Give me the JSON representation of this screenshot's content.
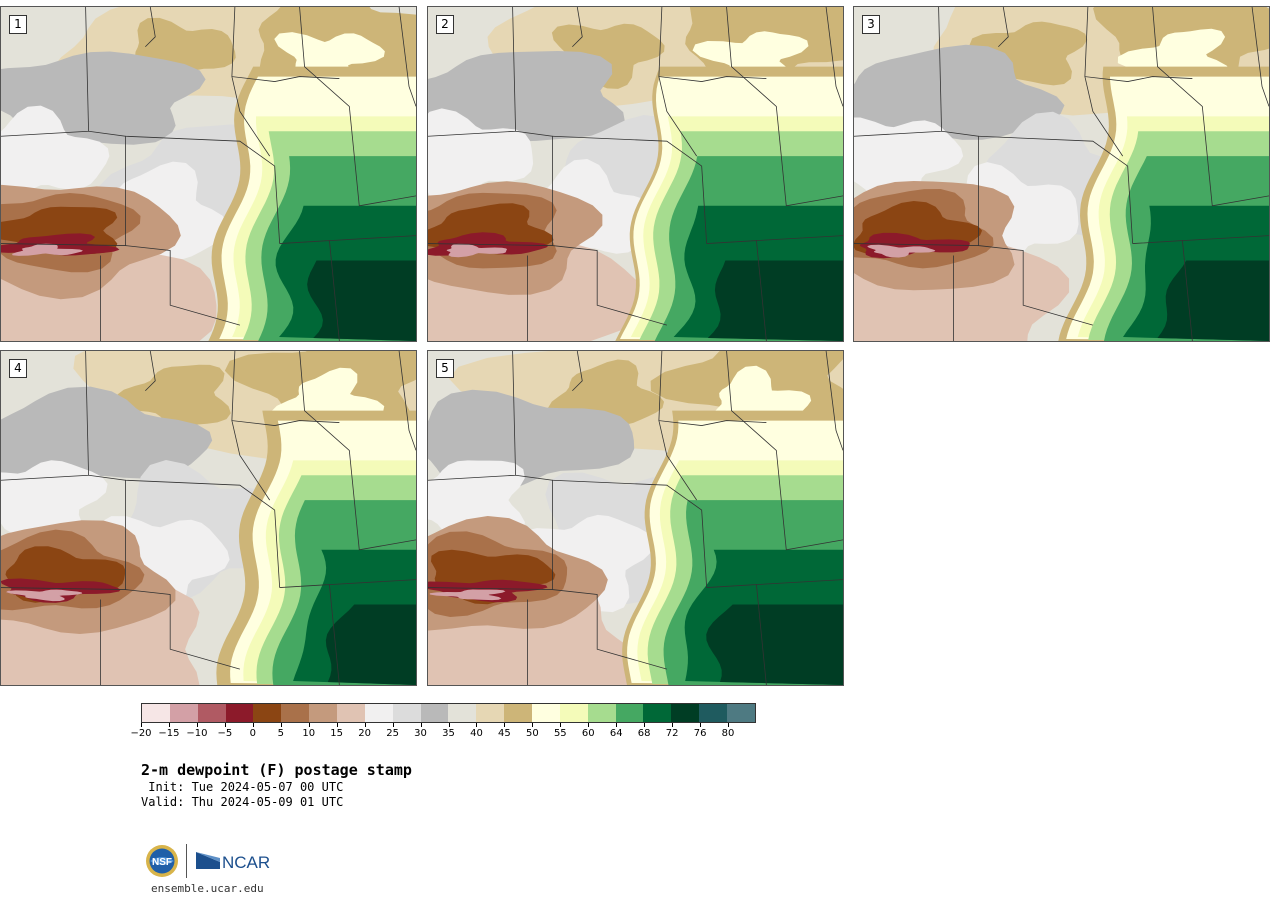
{
  "panels": [
    {
      "label": "1",
      "warm_shift": 0.0,
      "dry_shift": 0.0
    },
    {
      "label": "2",
      "warm_shift": 0.05,
      "dry_shift": -0.03
    },
    {
      "label": "3",
      "warm_shift": 0.02,
      "dry_shift": 0.02
    },
    {
      "label": "4",
      "warm_shift": -0.03,
      "dry_shift": 0.04
    },
    {
      "label": "5",
      "warm_shift": 0.04,
      "dry_shift": -0.02
    }
  ],
  "colorbar": {
    "colors": [
      "#f6e6e6",
      "#d3a0a6",
      "#b05a63",
      "#8c1a2a",
      "#8b4513",
      "#a9714a",
      "#c49a7d",
      "#e0c3b3",
      "#f1f0f0",
      "#dcdcdc",
      "#b9b9b9",
      "#e3e2d9",
      "#e6d7b4",
      "#cdb578",
      "#ffffe0",
      "#f4fbb9",
      "#a6dc8f",
      "#45a862",
      "#006837",
      "#003d24",
      "#1f5b5f",
      "#4e7a82"
    ],
    "tick_labels": [
      "−20",
      "−15",
      "−10",
      "−5",
      "0",
      "5",
      "10",
      "15",
      "20",
      "25",
      "30",
      "35",
      "40",
      "45",
      "50",
      "55",
      "60",
      "64",
      "68",
      "72",
      "76",
      "80"
    ]
  },
  "title": "2-m dewpoint (F) postage stamp",
  "init_line": " Init: Tue 2024-05-07 00 UTC",
  "valid_line": "Valid: Thu 2024-05-09 01 UTC",
  "logos": {
    "nsf_text": "NSF",
    "ncar_text": "NCAR",
    "nsf_icon": "nsf-globe-icon",
    "ncar_icon": "ncar-wedge-icon"
  },
  "website": "ensemble.ucar.edu"
}
